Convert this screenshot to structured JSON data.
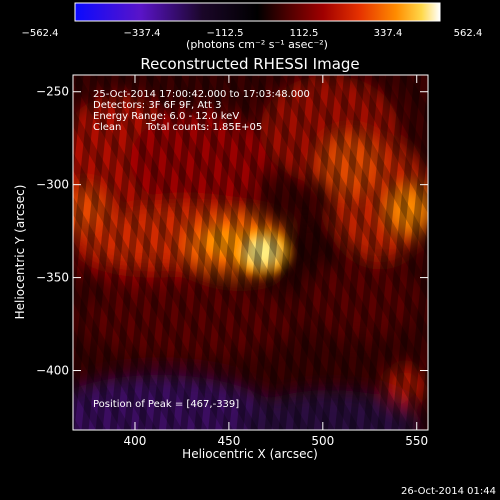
{
  "chart_data": {
    "type": "heatmap",
    "title": "Reconstructed RHESSI Image",
    "xlabel": "Heliocentric X (arcsec)",
    "ylabel": "Heliocentric Y (arcsec)",
    "xlim": [
      367,
      556
    ],
    "ylim": [
      -432,
      -241
    ],
    "x_ticks": [
      400,
      450,
      500,
      550
    ],
    "y_ticks": [
      -250,
      -300,
      -350,
      -400
    ],
    "colorbar": {
      "min": -562.4,
      "max": 562.4,
      "ticks": [
        "−562.4",
        "−337.4",
        "−112.5",
        "112.5",
        "337.4",
        "562.4"
      ],
      "unit_label": "(photons cm⁻² s⁻¹ asec⁻²)",
      "colormap_stops": [
        "#0a0aff",
        "#5a14c8",
        "#1a0628",
        "#000000",
        "#4a0000",
        "#a00000",
        "#e63200",
        "#ff8c00",
        "#ffd84a",
        "#ffffff"
      ]
    },
    "annotations": {
      "time_range": "25-Oct-2014 17:00:42.000 to 17:03:48.000",
      "detectors": "Detectors: 3F 6F 9F, Att 3",
      "energy_range": "Energy Range: 6.0 - 12.0 keV",
      "method": "Clean",
      "total_counts": "Total counts: 1.85E+05",
      "peak_position": "Position of Peak = [467,-339]"
    },
    "peak": {
      "x": 467,
      "y": -339
    }
  },
  "footer": {
    "timestamp": "26-Oct-2014 01:44"
  }
}
